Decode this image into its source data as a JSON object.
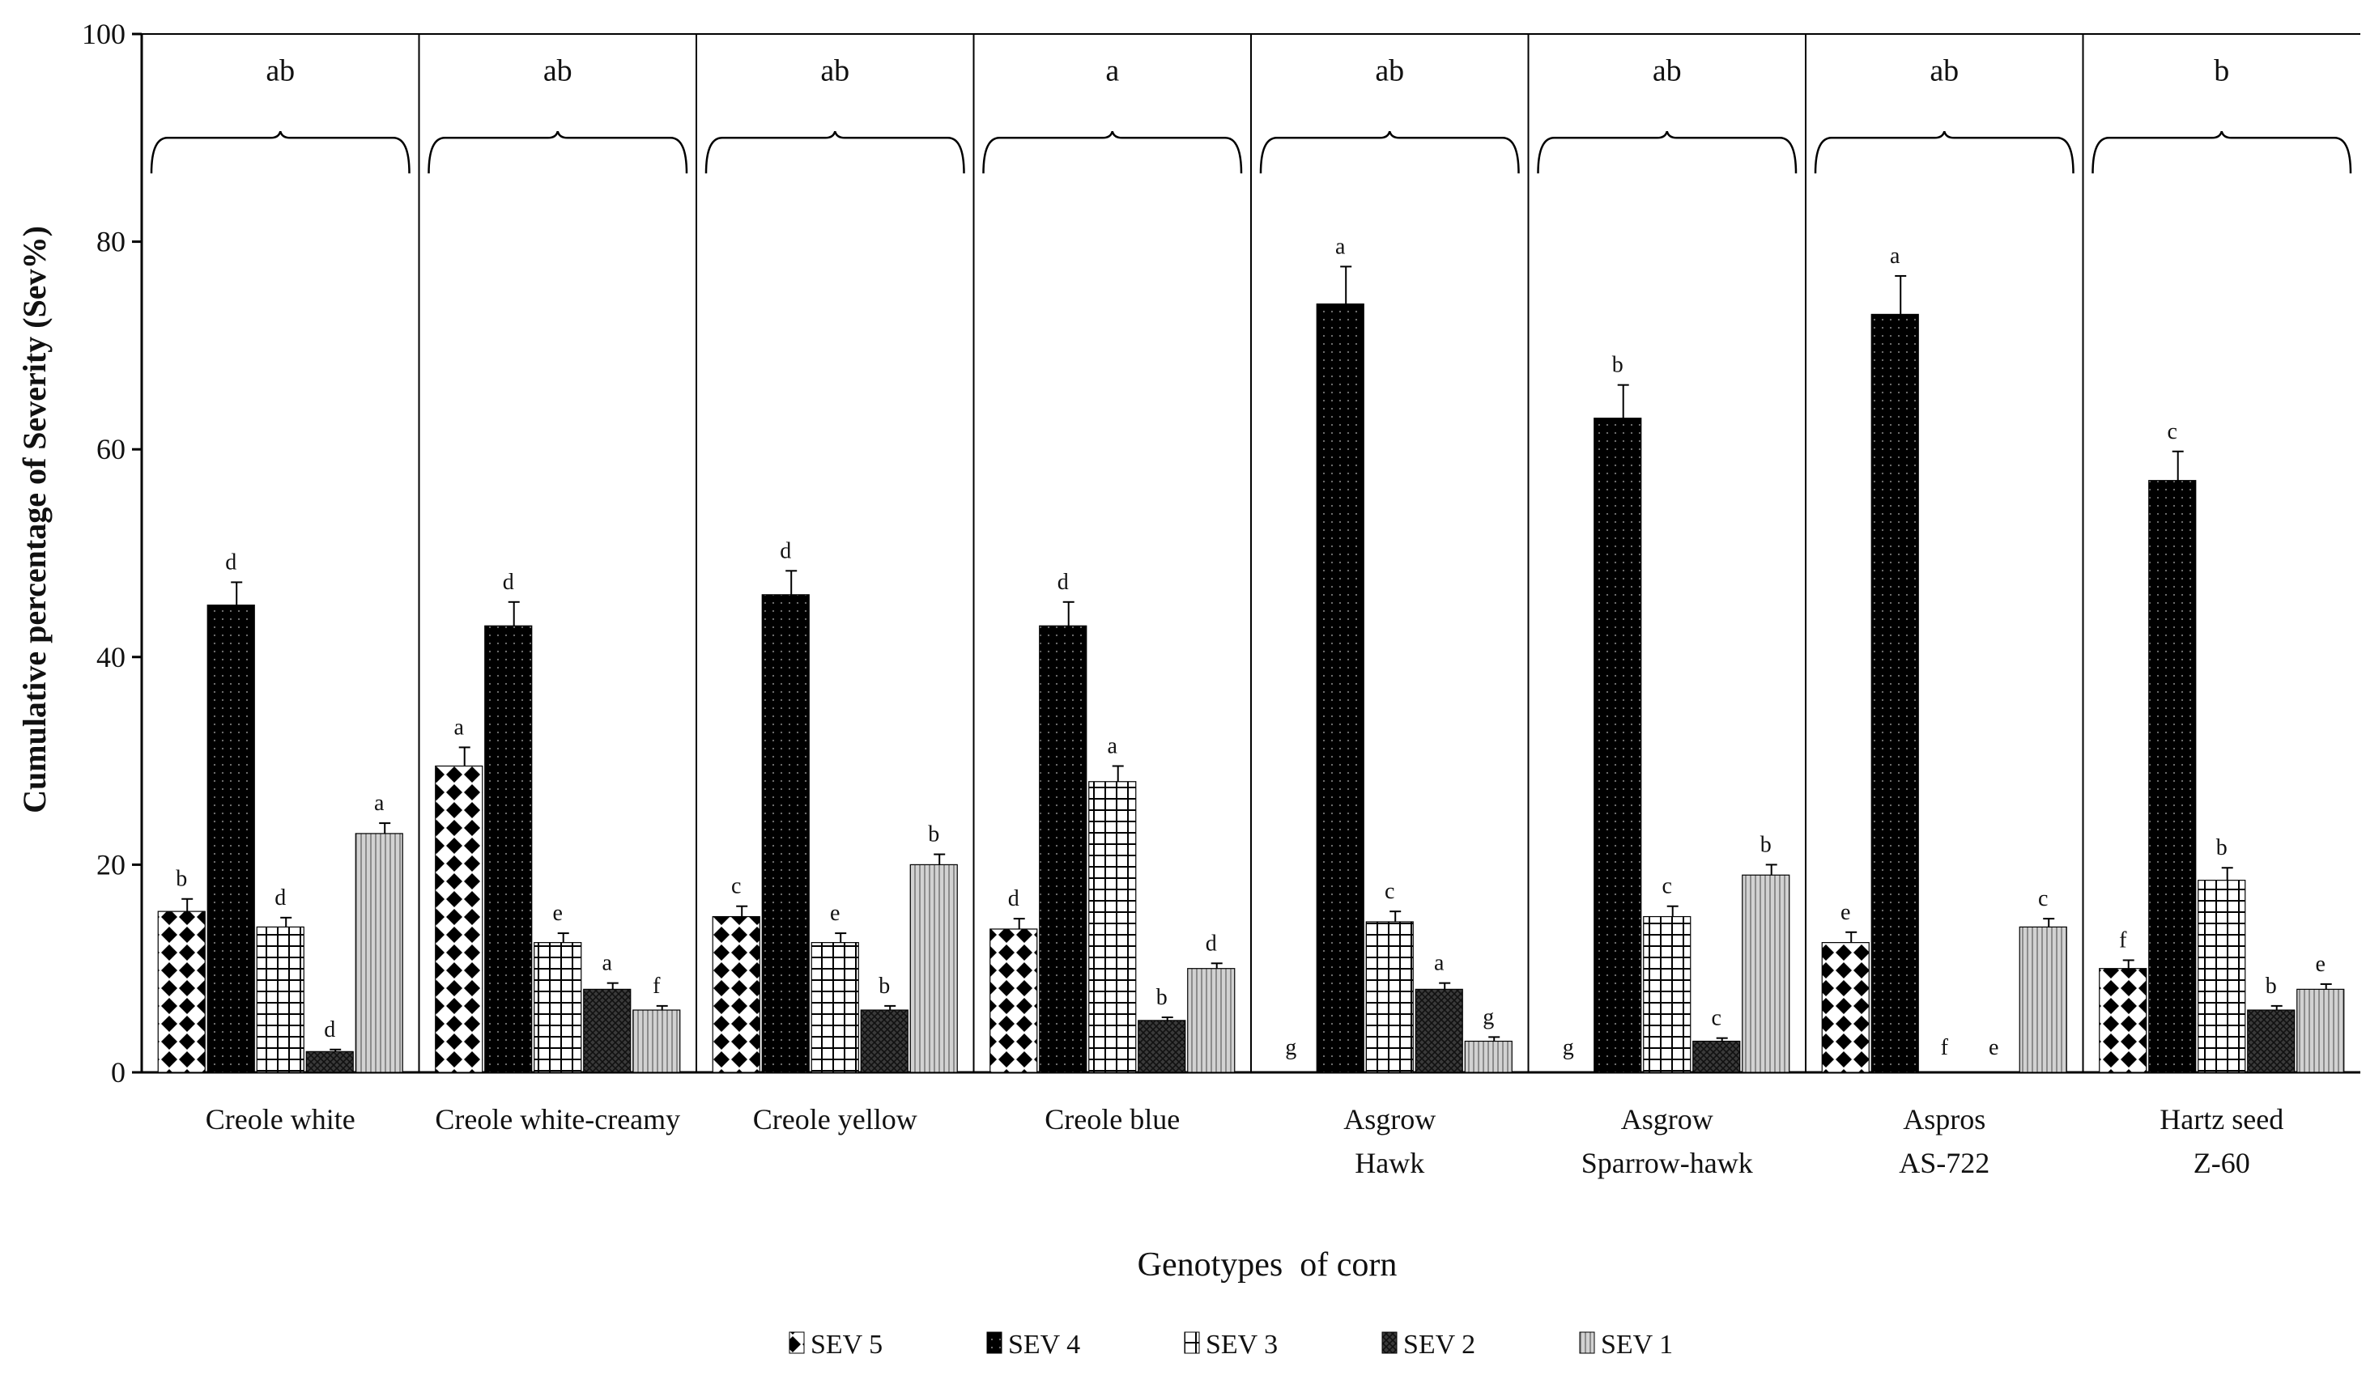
{
  "chart_data": {
    "type": "bar",
    "ylabel": "Cumulative percentage of Severity (Sev%)",
    "xlabel": "Genotypes  of corn",
    "ylim": [
      0,
      100
    ],
    "yticks": [
      0,
      20,
      40,
      60,
      80,
      100
    ],
    "categories": [
      [
        "Creole white"
      ],
      [
        "Creole white-creamy"
      ],
      [
        "Creole yellow"
      ],
      [
        "Creole blue"
      ],
      [
        "Asgrow",
        "Hawk"
      ],
      [
        "Asgrow",
        "Sparrow-hawk"
      ],
      [
        "Aspros",
        "AS-722"
      ],
      [
        "Hartz seed",
        "Z-60"
      ]
    ],
    "group_letters": [
      "ab",
      "ab",
      "ab",
      "a",
      "ab",
      "ab",
      "ab",
      "b"
    ],
    "series": [
      {
        "name": "SEV 5",
        "legend": "SEV 5",
        "color": "#000000",
        "pattern": "diamond",
        "values": [
          15.5,
          29.5,
          15,
          13.8,
          0,
          0,
          12.5,
          10
        ],
        "errors": [
          1.2,
          1.8,
          1.0,
          1.0,
          0,
          0,
          1.0,
          0.8
        ],
        "letters": [
          "b",
          "a",
          "c",
          "d",
          "g",
          "g",
          "e",
          "f"
        ]
      },
      {
        "name": "SEV 4",
        "legend": "SEV 4",
        "color": "#000000",
        "pattern": "dots",
        "values": [
          45,
          43,
          46,
          43,
          74,
          63,
          73,
          57
        ],
        "errors": [
          2.2,
          2.3,
          2.3,
          2.3,
          3.6,
          3.2,
          3.7,
          2.8
        ],
        "letters": [
          "d",
          "d",
          "d",
          "d",
          "a",
          "b",
          "a",
          "c"
        ]
      },
      {
        "name": "SEV 3",
        "legend": "SEV 3",
        "color": "#000000",
        "pattern": "grid",
        "values": [
          14,
          12.5,
          12.5,
          28,
          14.5,
          15,
          0,
          18.5
        ],
        "errors": [
          0.9,
          0.9,
          0.9,
          1.5,
          1.0,
          1.0,
          0,
          1.2
        ],
        "letters": [
          "d",
          "e",
          "e",
          "a",
          "c",
          "c",
          "f",
          "b"
        ]
      },
      {
        "name": "SEV 2",
        "legend": "SEV 2",
        "color": "#333333",
        "pattern": "cross",
        "values": [
          2,
          8,
          6,
          5,
          8,
          3,
          0,
          6
        ],
        "errors": [
          0.2,
          0.6,
          0.4,
          0.3,
          0.6,
          0.3,
          0,
          0.4
        ],
        "letters": [
          "d",
          "a",
          "b",
          "b",
          "a",
          "c",
          "e",
          "b"
        ]
      },
      {
        "name": "SEV 1",
        "legend": "SEV 1",
        "color": "#b4b4b4",
        "pattern": "vlines",
        "values": [
          23,
          6,
          20,
          10,
          3,
          19,
          14,
          8
        ],
        "errors": [
          1.0,
          0.4,
          1.0,
          0.5,
          0.4,
          1.0,
          0.8,
          0.5
        ],
        "letters": [
          "a",
          "f",
          "b",
          "d",
          "g",
          "b",
          "c",
          "e"
        ]
      }
    ]
  }
}
